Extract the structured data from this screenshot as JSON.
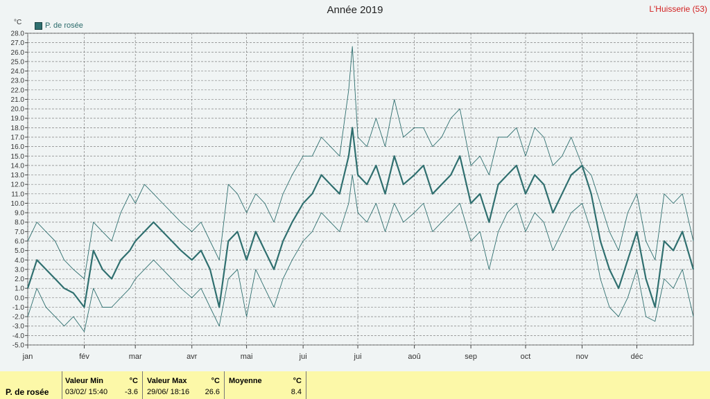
{
  "title": "Année 2019",
  "station": "L'Huisserie (53)",
  "unit": "°C",
  "legend_label": "P. de rosée",
  "colors": {
    "series": "#2f6f6f",
    "grid": "#808080",
    "background": "#f0f4f4",
    "panel": "#fcf8a8",
    "station": "#d22020"
  },
  "stats": {
    "series_label": "P. de rosée",
    "min": {
      "label": "Valeur Min",
      "unit": "°C",
      "date": "03/02/ 15:40",
      "value": "-3.6"
    },
    "max": {
      "label": "Valeur Max",
      "unit": "°C",
      "date": "29/06/ 18:16",
      "value": "26.6"
    },
    "avg": {
      "label": "Moyenne",
      "unit": "°C",
      "value": "8.4"
    }
  },
  "chart_data": {
    "type": "line",
    "title": "Année 2019",
    "ylabel": "°C",
    "ylim": [
      -5,
      28
    ],
    "yticks": [
      "-5.0",
      "-4.0",
      "-3.0",
      "-2.0",
      "-1.0",
      "0.0",
      "1.0",
      "2.0",
      "3.0",
      "4.0",
      "5.0",
      "6.0",
      "7.0",
      "8.0",
      "9.0",
      "10.0",
      "11.0",
      "12.0",
      "13.0",
      "14.0",
      "15.0",
      "16.0",
      "17.0",
      "18.0",
      "19.0",
      "20.0",
      "21.0",
      "22.0",
      "23.0",
      "24.0",
      "25.0",
      "26.0",
      "27.0",
      "28.0"
    ],
    "xlim": [
      0,
      365
    ],
    "xticks": [
      {
        "label": "jan",
        "day": 0
      },
      {
        "label": "fév",
        "day": 31
      },
      {
        "label": "mar",
        "day": 59
      },
      {
        "label": "avr",
        "day": 90
      },
      {
        "label": "mai",
        "day": 120
      },
      {
        "label": "jui",
        "day": 151
      },
      {
        "label": "jui",
        "day": 181
      },
      {
        "label": "aoû",
        "day": 212
      },
      {
        "label": "sep",
        "day": 243
      },
      {
        "label": "oct",
        "day": 273
      },
      {
        "label": "nov",
        "day": 304
      },
      {
        "label": "déc",
        "day": 334
      }
    ],
    "grid": true,
    "legend_position": "top-left",
    "series": [
      {
        "name": "P. de rosée",
        "role": "mean",
        "x": [
          0,
          5,
          10,
          15,
          20,
          25,
          31,
          36,
          41,
          46,
          51,
          56,
          59,
          64,
          69,
          74,
          79,
          84,
          90,
          95,
          100,
          105,
          110,
          115,
          120,
          125,
          130,
          135,
          140,
          145,
          151,
          156,
          161,
          166,
          171,
          176,
          178,
          181,
          186,
          191,
          196,
          201,
          206,
          212,
          217,
          222,
          227,
          232,
          237,
          243,
          248,
          253,
          258,
          263,
          268,
          273,
          278,
          283,
          288,
          293,
          298,
          304,
          309,
          314,
          319,
          324,
          329,
          334,
          339,
          344,
          349,
          354,
          359,
          365
        ],
        "y": [
          1,
          4,
          3,
          2,
          1,
          0.5,
          -1,
          5,
          3,
          2,
          4,
          5,
          6,
          7,
          8,
          7,
          6,
          5,
          4,
          5,
          3,
          -1,
          6,
          7,
          4,
          7,
          5,
          3,
          6,
          8,
          10,
          11,
          13,
          12,
          11,
          15,
          18,
          13,
          12,
          14,
          11,
          15,
          12,
          13,
          14,
          11,
          12,
          13,
          15,
          10,
          11,
          8,
          12,
          13,
          14,
          11,
          13,
          12,
          9,
          11,
          13,
          14,
          11,
          6,
          3,
          1,
          4,
          7,
          2,
          -1,
          6,
          5,
          7,
          3
        ]
      },
      {
        "name": "",
        "role": "max",
        "x": [
          0,
          5,
          10,
          15,
          20,
          25,
          31,
          36,
          41,
          46,
          51,
          56,
          59,
          64,
          69,
          74,
          79,
          84,
          90,
          95,
          100,
          105,
          110,
          115,
          120,
          125,
          130,
          135,
          140,
          145,
          151,
          156,
          161,
          166,
          171,
          176,
          178,
          181,
          186,
          191,
          196,
          201,
          206,
          212,
          217,
          222,
          227,
          232,
          237,
          243,
          248,
          253,
          258,
          263,
          268,
          273,
          278,
          283,
          288,
          293,
          298,
          304,
          309,
          314,
          319,
          324,
          329,
          334,
          339,
          344,
          349,
          354,
          359,
          365
        ],
        "y": [
          6,
          8,
          7,
          6,
          4,
          3,
          2,
          8,
          7,
          6,
          9,
          11,
          10,
          12,
          11,
          10,
          9,
          8,
          7,
          8,
          6,
          4,
          12,
          11,
          9,
          11,
          10,
          8,
          11,
          13,
          15,
          15,
          17,
          16,
          15,
          22,
          26.6,
          17,
          16,
          19,
          16,
          21,
          17,
          18,
          18,
          16,
          17,
          19,
          20,
          14,
          15,
          13,
          17,
          17,
          18,
          15,
          18,
          17,
          14,
          15,
          17,
          14,
          13,
          10,
          7,
          5,
          9,
          11,
          6,
          4,
          11,
          10,
          11,
          6
        ]
      },
      {
        "name": "",
        "role": "min",
        "x": [
          0,
          5,
          10,
          15,
          20,
          25,
          31,
          36,
          41,
          46,
          51,
          56,
          59,
          64,
          69,
          74,
          79,
          84,
          90,
          95,
          100,
          105,
          110,
          115,
          120,
          125,
          130,
          135,
          140,
          145,
          151,
          156,
          161,
          166,
          171,
          176,
          178,
          181,
          186,
          191,
          196,
          201,
          206,
          212,
          217,
          222,
          227,
          232,
          237,
          243,
          248,
          253,
          258,
          263,
          268,
          273,
          278,
          283,
          288,
          293,
          298,
          304,
          309,
          314,
          319,
          324,
          329,
          334,
          339,
          344,
          349,
          354,
          359,
          365
        ],
        "y": [
          -2,
          1,
          -1,
          -2,
          -3,
          -2,
          -3.6,
          1,
          -1,
          -1,
          0,
          1,
          2,
          3,
          4,
          3,
          2,
          1,
          0,
          1,
          -1,
          -3,
          2,
          3,
          -2,
          3,
          1,
          -1,
          2,
          4,
          6,
          7,
          9,
          8,
          7,
          10,
          13,
          9,
          8,
          10,
          7,
          10,
          8,
          9,
          10,
          7,
          8,
          9,
          10,
          6,
          7,
          3,
          7,
          9,
          10,
          7,
          9,
          8,
          5,
          7,
          9,
          10,
          7,
          2,
          -1,
          -2,
          0,
          3,
          -2,
          -2.5,
          2,
          1,
          3,
          -2
        ]
      }
    ]
  }
}
